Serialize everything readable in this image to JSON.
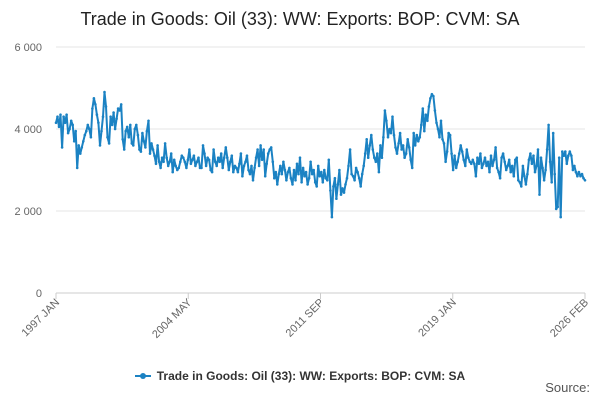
{
  "chart_data": {
    "type": "line",
    "title": "Trade in Goods: Oil (33): WW: Exports: BOP: CVM: SA",
    "xlabel": "",
    "ylabel": "",
    "ylim": [
      0,
      6000
    ],
    "yticks": [
      0,
      2000,
      4000,
      6000
    ],
    "ytick_labels": [
      "0",
      "2 000",
      "4 000",
      "6 000"
    ],
    "xtick_labels": [
      "1997 JAN",
      "2004 MAY",
      "2011 SEP",
      "2019 JAN",
      "2026 FEB"
    ],
    "x_start": "1997-01",
    "x_end": "2026-02",
    "grid": true,
    "legend_position": "bottom",
    "series": [
      {
        "name": "Trade in Goods: Oil (33): WW: Exports: BOP: CVM: SA",
        "color": "#1b82c3",
        "annual_values": [
          {
            "year": 1997,
            "values": [
              4150,
              4300,
              4050,
              4350,
              3550,
              4300,
              4150,
              4350,
              3900,
              4000,
              4200,
              4100
            ]
          },
          {
            "year": 1998,
            "values": [
              3700,
              3950,
              3050,
              3600,
              3400,
              3550,
              3700,
              3850,
              3950,
              4100,
              4000,
              3800
            ]
          },
          {
            "year": 1999,
            "values": [
              4500,
              4750,
              4600,
              4350,
              4150,
              3600,
              3950,
              4300,
              4900,
              4550,
              3800,
              3650
            ]
          },
          {
            "year": 2000,
            "values": [
              4300,
              4100,
              4400,
              4000,
              4250,
              4500,
              4450,
              4600,
              3750,
              3500,
              3950,
              4050
            ]
          },
          {
            "year": 2001,
            "values": [
              3800,
              4100,
              3650,
              3600,
              4000,
              4100,
              3850,
              3500,
              3450,
              3900,
              3700,
              3550
            ]
          },
          {
            "year": 2002,
            "values": [
              3950,
              4200,
              3400,
              3650,
              3500,
              3350,
              3150,
              3600,
              3200,
              3050,
              3300,
              3200
            ]
          },
          {
            "year": 2003,
            "values": [
              3650,
              3300,
              3100,
              3200,
              3400,
              2950,
              3250,
              3100,
              3000,
              3050,
              3200,
              3350
            ]
          },
          {
            "year": 2004,
            "values": [
              3300,
              3200,
              3050,
              3250,
              3500,
              3150,
              3250,
              3350,
              3100,
              3200,
              3300,
              3050
            ]
          },
          {
            "year": 2005,
            "values": [
              3050,
              3600,
              3400,
              3100,
              3300,
              3250,
              3000,
              2950,
              3500,
              3200,
              3100,
              3300
            ]
          },
          {
            "year": 2006,
            "values": [
              3200,
              3400,
              3050,
              3300,
              3550,
              3300,
              3000,
              3200,
              3350,
              2950,
              3100,
              3050
            ]
          },
          {
            "year": 2007,
            "values": [
              2950,
              3150,
              3400,
              2850,
              3100,
              3200,
              3350,
              3000,
              2900,
              3100,
              2750,
              3050
            ]
          },
          {
            "year": 2008,
            "values": [
              3300,
              3500,
              3100,
              3600,
              3250,
              3500,
              2850,
              3150,
              3400,
              3500,
              3550,
              3200
            ]
          },
          {
            "year": 2009,
            "values": [
              2800,
              2950,
              2650,
              2900,
              3100,
              2900,
              3200,
              3000,
              2750,
              2950,
              3050,
              2800
            ]
          },
          {
            "year": 2010,
            "values": [
              2650,
              3000,
              2750,
              3150,
              2900,
              3300,
              2700,
              3050,
              2850,
              2950,
              2650,
              2800
            ]
          },
          {
            "year": 2011,
            "values": [
              3200,
              2900,
              3000,
              2700,
              2600,
              3100,
              2850,
              2950,
              2700,
              3000,
              2800,
              2750
            ]
          },
          {
            "year": 2012,
            "values": [
              3250,
              2500,
              1850,
              2600,
              2800,
              2300,
              2650,
              3000,
              2400,
              2550,
              2450,
              2650
            ]
          },
          {
            "year": 2013,
            "values": [
              2800,
              3100,
              3500,
              2900,
              2850,
              2750,
              3050,
              2950,
              2800,
              2600,
              2900,
              3100
            ]
          },
          {
            "year": 2014,
            "values": [
              3400,
              3750,
              3300,
              3600,
              3850,
              3500,
              3300,
              3200,
              3400,
              2950,
              3600,
              3300
            ]
          },
          {
            "year": 2015,
            "values": [
              3800,
              4450,
              4200,
              3800,
              4000,
              3900,
              4300,
              3850,
              3550,
              3400,
              3650,
              3900
            ]
          },
          {
            "year": 2016,
            "values": [
              3500,
              3600,
              3300,
              3400,
              3750,
              3550,
              3250,
              3050,
              3900,
              3600,
              3850,
              3700
            ]
          },
          {
            "year": 2017,
            "values": [
              3800,
              4100,
              4500,
              3950,
              4350,
              4200,
              4550,
              4750,
              4850,
              4800,
              4450,
              4150
            ]
          },
          {
            "year": 2018,
            "values": [
              4000,
              3800,
              4200,
              3750,
              3650,
              3200,
              3450,
              3900,
              3850,
              3400,
              3000,
              3350
            ]
          },
          {
            "year": 2019,
            "values": [
              3050,
              3200,
              3400,
              3600,
              3450,
              3250,
              3100,
              3500,
              3300,
              3200,
              3150,
              3250
            ]
          },
          {
            "year": 2020,
            "values": [
              3150,
              2850,
              3300,
              3150,
              3400,
              3050,
              3150,
              3300,
              3100,
              3200,
              2950,
              3350
            ]
          },
          {
            "year": 2021,
            "values": [
              3100,
              3250,
              3550,
              3050,
              2950,
              2800,
              3300,
              3400,
              3200,
              3000,
              3100,
              3250
            ]
          },
          {
            "year": 2022,
            "values": [
              2950,
              3100,
              2850,
              3250,
              3300,
              2750,
              2700,
              2600,
              3100,
              2850,
              2650,
              2900
            ]
          },
          {
            "year": 2023,
            "values": [
              3250,
              3400,
              3150,
              3350,
              2950,
              3100,
              3500,
              2400,
              3300,
              3050,
              2750,
              3000
            ]
          },
          {
            "year": 2024,
            "values": [
              3500,
              4100,
              3200,
              2700,
              3900,
              2900,
              2050,
              2100,
              3300,
              1850,
              3450,
              3350
            ]
          },
          {
            "year": 2025,
            "values": [
              3450,
              3150,
              3350,
              3450,
              3350,
              3000,
              3100,
              2950,
              2850,
              2950,
              2850,
              2900
            ]
          },
          {
            "year": 2026,
            "values": [
              2800,
              2750
            ]
          }
        ]
      }
    ]
  },
  "legend": {
    "label": "Trade in Goods: Oil (33): WW: Exports: BOP: CVM: SA"
  },
  "source": {
    "label": "Source:"
  }
}
